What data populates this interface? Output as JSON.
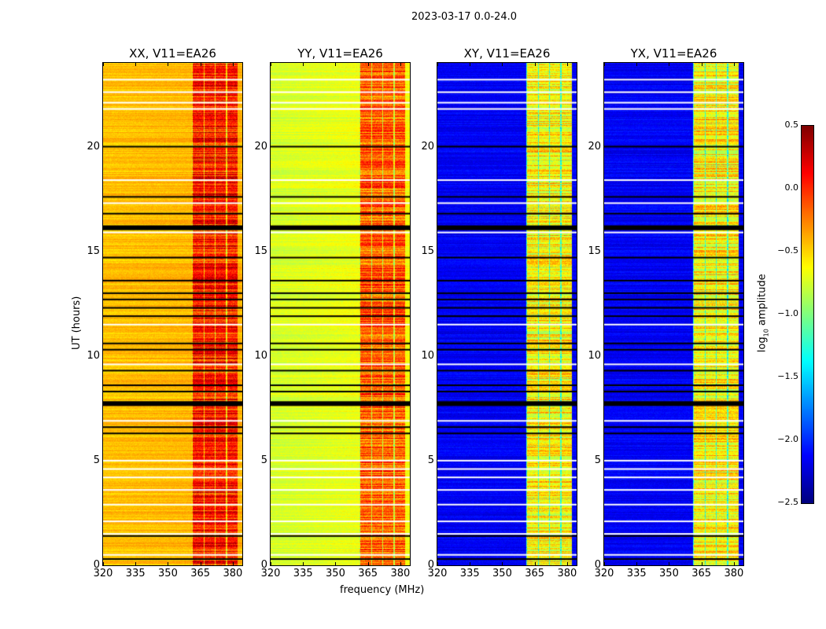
{
  "chart_data": {
    "type": "heatmap",
    "title": "2023-03-17 0.0-24.0",
    "xlabel": "frequency (MHz)",
    "ylabel": "UT (hours)",
    "xlim": [
      320,
      384.4
    ],
    "ylim": [
      0,
      24
    ],
    "xticks": [
      "320",
      "335",
      "350",
      "365",
      "380"
    ],
    "xtick_values": [
      320,
      335,
      350,
      365,
      380
    ],
    "yticks": [
      "0",
      "5",
      "10",
      "15",
      "20"
    ],
    "ytick_values": [
      0,
      5,
      10,
      15,
      20
    ],
    "colormap": "jet",
    "colorbar": {
      "label": "log10 amplitude",
      "label_main": "log",
      "label_sub": "10",
      "label_rest": " amplitude",
      "range": [
        -2.5,
        0.5
      ],
      "ticks": [
        "0.5",
        "0.0",
        "−0.5",
        "−1.0",
        "−1.5",
        "−2.0",
        "−2.5"
      ],
      "tick_values": [
        0.5,
        0.0,
        -0.5,
        -1.0,
        -1.5,
        -2.0,
        -2.5
      ]
    },
    "rfi_band_mhz": [
      361,
      382
    ],
    "flagged_black_hours": [
      0.3,
      1.4,
      6.3,
      6.6,
      7.8,
      8.3,
      8.6,
      9.3,
      10.3,
      10.6,
      11.9,
      12.3,
      12.7,
      13.0,
      13.6,
      14.7,
      16.2,
      16.8,
      17.6,
      20.0
    ],
    "flagged_white_hours": [
      0.5,
      1.5,
      2.1,
      2.9,
      3.6,
      4.2,
      4.6,
      5.0,
      6.9,
      9.6,
      11.5,
      15.9,
      17.3,
      18.4,
      21.8,
      22.1,
      22.6,
      23.2
    ],
    "panels": [
      {
        "title": "XX, V11=EA26",
        "base_level": -0.45,
        "band_level": 0.05,
        "slope": 0.05
      },
      {
        "title": "YY, V11=EA26",
        "base_level": -0.75,
        "band_level": -0.15,
        "slope": 0.12
      },
      {
        "title": "XY, V11=EA26",
        "base_level": -2.15,
        "band_level": -0.6,
        "slope": 0.0
      },
      {
        "title": "YX, V11=EA26",
        "base_level": -2.15,
        "band_level": -0.6,
        "slope": 0.0
      }
    ]
  }
}
